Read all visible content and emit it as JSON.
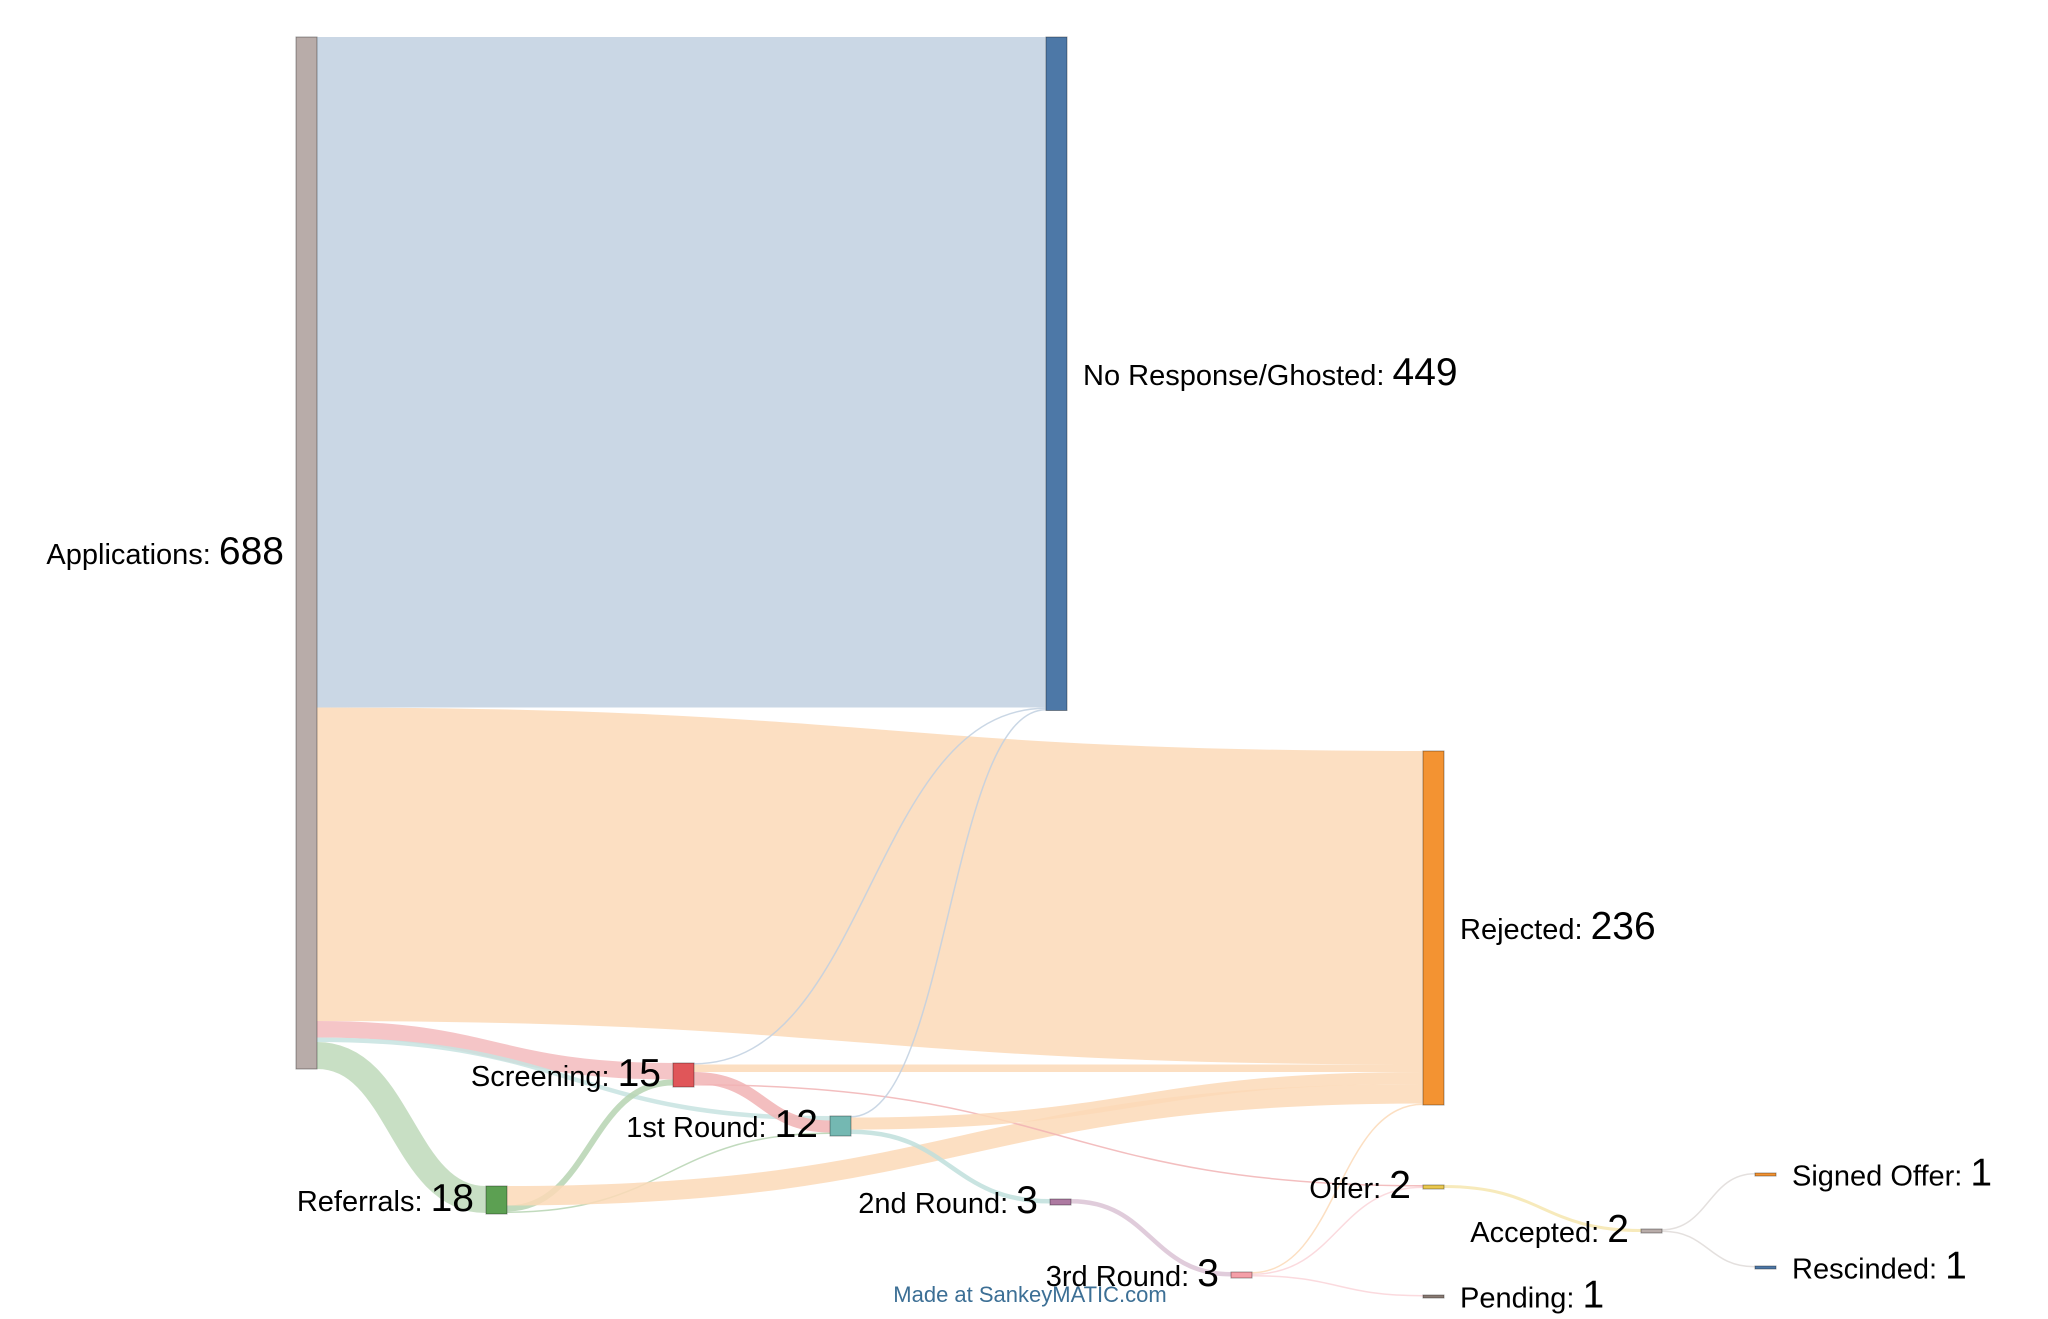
{
  "chart_data": {
    "type": "sankey",
    "nodes": [
      {
        "id": "applications",
        "label": "Applications",
        "value": 688,
        "color": "#b8aca9"
      },
      {
        "id": "no_response",
        "label": "No Response/Ghosted",
        "value": 449,
        "color": "#4d78a7"
      },
      {
        "id": "rejected",
        "label": "Rejected",
        "value": 236,
        "color": "#f39332"
      },
      {
        "id": "screening",
        "label": "Screening",
        "value": 15,
        "color": "#e05659"
      },
      {
        "id": "first_round",
        "label": "1st Round",
        "value": 12,
        "color": "#74b8b2"
      },
      {
        "id": "referrals",
        "label": "Referrals",
        "value": 18,
        "color": "#5ca052"
      },
      {
        "id": "second_round",
        "label": "2nd Round",
        "value": 3,
        "color": "#ad7aa1"
      },
      {
        "id": "third_round",
        "label": "3rd Round",
        "value": 3,
        "color": "#f49fa8"
      },
      {
        "id": "offer",
        "label": "Offer",
        "value": 2,
        "color": "#eac84e"
      },
      {
        "id": "accepted",
        "label": "Accepted",
        "value": 2,
        "color": "#b8aca9"
      },
      {
        "id": "pending",
        "label": "Pending",
        "value": 1,
        "color": "#8a7b74"
      },
      {
        "id": "signed_offer",
        "label": "Signed Offer",
        "value": 1,
        "color": "#f39332"
      },
      {
        "id": "rescinded",
        "label": "Rescinded",
        "value": 1,
        "color": "#4d78a7"
      }
    ],
    "links": [
      {
        "source": "applications",
        "target": "no_response",
        "value": 447
      },
      {
        "source": "applications",
        "target": "rejected",
        "value": 209
      },
      {
        "source": "applications",
        "target": "screening",
        "value": 11
      },
      {
        "source": "applications",
        "target": "first_round",
        "value": 3
      },
      {
        "source": "applications",
        "target": "referrals",
        "value": 18
      },
      {
        "source": "referrals",
        "target": "screening",
        "value": 4
      },
      {
        "source": "referrals",
        "target": "first_round",
        "value": 1
      },
      {
        "source": "referrals",
        "target": "rejected",
        "value": 13
      },
      {
        "source": "screening",
        "target": "no_response",
        "value": 1
      },
      {
        "source": "screening",
        "target": "rejected",
        "value": 5
      },
      {
        "source": "screening",
        "target": "first_round",
        "value": 8
      },
      {
        "source": "screening",
        "target": "offer",
        "value": 1
      },
      {
        "source": "first_round",
        "target": "no_response",
        "value": 1
      },
      {
        "source": "first_round",
        "target": "rejected",
        "value": 8
      },
      {
        "source": "first_round",
        "target": "second_round",
        "value": 3
      },
      {
        "source": "second_round",
        "target": "third_round",
        "value": 3
      },
      {
        "source": "third_round",
        "target": "rejected",
        "value": 1
      },
      {
        "source": "third_round",
        "target": "offer",
        "value": 1
      },
      {
        "source": "third_round",
        "target": "pending",
        "value": 1
      },
      {
        "source": "offer",
        "target": "accepted",
        "value": 2
      },
      {
        "source": "accepted",
        "target": "signed_offer",
        "value": 1
      },
      {
        "source": "accepted",
        "target": "rescinded",
        "value": 1
      }
    ],
    "credit": "Made at SankeyMATIC.com"
  }
}
